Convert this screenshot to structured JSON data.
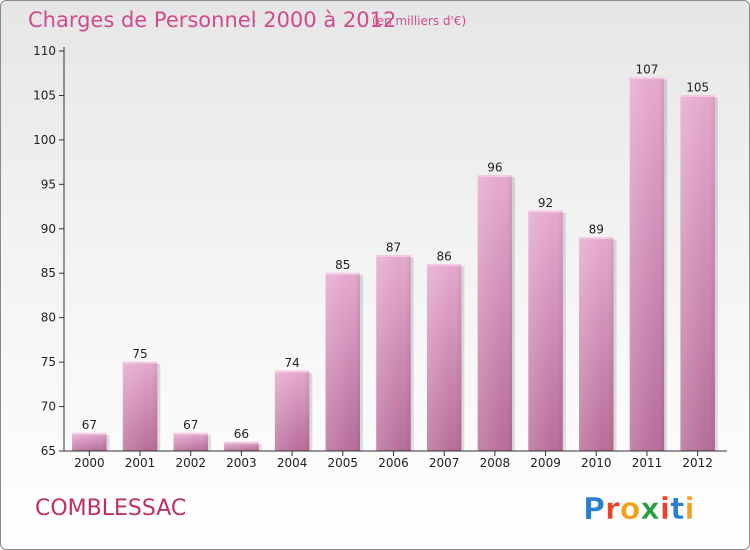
{
  "chart_data": {
    "type": "bar",
    "title": "Charges de Personnel 2000 à 2012",
    "subtitle": "(en milliers d'€)",
    "categories": [
      "2000",
      "2001",
      "2002",
      "2003",
      "2004",
      "2005",
      "2006",
      "2007",
      "2008",
      "2009",
      "2010",
      "2011",
      "2012"
    ],
    "values": [
      67,
      75,
      67,
      66,
      74,
      85,
      87,
      86,
      96,
      92,
      89,
      107,
      105
    ],
    "ylim": [
      65,
      110
    ],
    "yticks": [
      65,
      70,
      75,
      80,
      85,
      90,
      95,
      100,
      105,
      110
    ],
    "grid": false,
    "bar_color": "#d48ab5"
  },
  "commune": "COMBLESSAC",
  "logo": {
    "text": "Proxiti",
    "letter_colors": [
      "#2a7fd0",
      "#e8442b",
      "#f2a21a",
      "#2a9e3f",
      "#e8442b",
      "#2a7fd0",
      "#f2a21a"
    ]
  }
}
